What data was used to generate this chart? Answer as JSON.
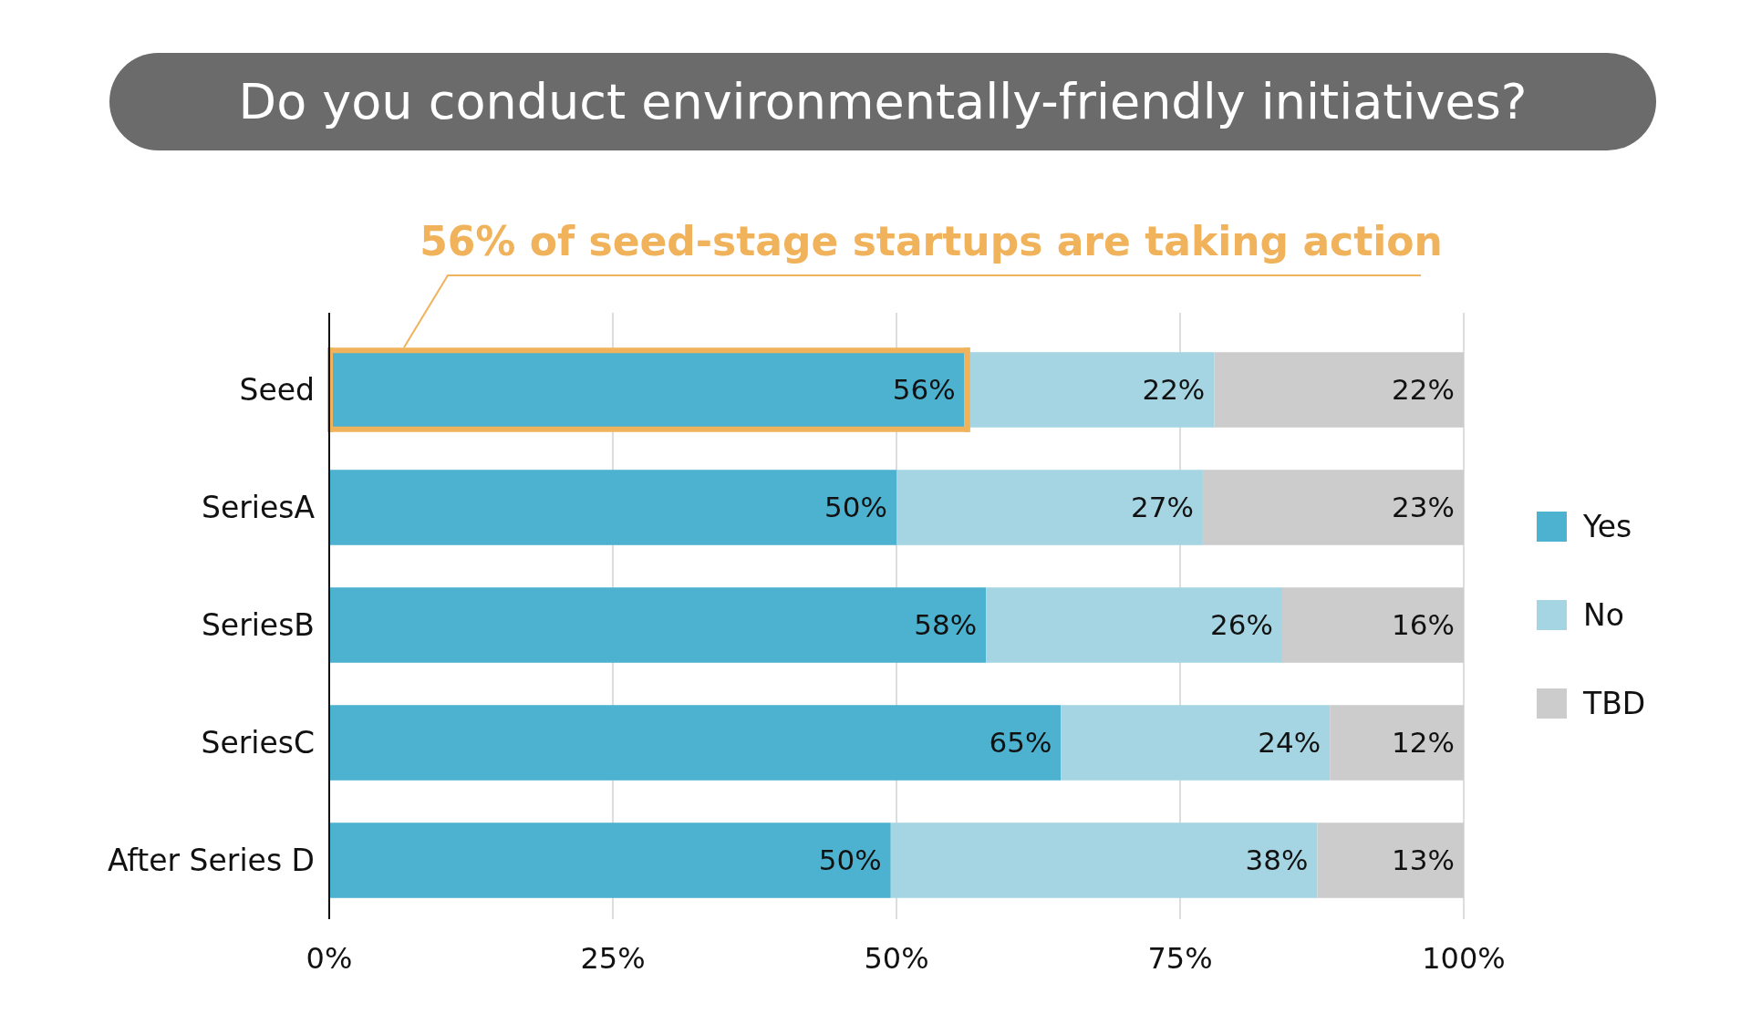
{
  "chart_data": {
    "type": "bar",
    "title": "Do you conduct environmentally-friendly initiatives?",
    "annotations": [
      "56% of seed-stage startups are taking action"
    ],
    "orientation": "horizontal",
    "stacked": true,
    "categories": [
      "Seed",
      "SeriesA",
      "SeriesB",
      "SeriesC",
      "After Series D"
    ],
    "series": [
      {
        "name": "Yes",
        "color": "#4db2d0",
        "values": [
          56,
          50,
          57.9,
          64.5,
          49.5
        ],
        "value_labels": [
          "56%",
          "50%",
          "58%",
          "65%",
          "50%"
        ]
      },
      {
        "name": "No",
        "color": "#a5d5e2",
        "values": [
          22,
          27,
          26.1,
          23.7,
          37.6
        ],
        "value_labels": [
          "22%",
          "27%",
          "26%",
          "24%",
          "38%"
        ]
      },
      {
        "name": "TBD",
        "color": "#cccccc",
        "values": [
          22,
          23,
          16,
          11.8,
          12.9
        ],
        "value_labels": [
          "22%",
          "23%",
          "16%",
          "12%",
          "13%"
        ]
      }
    ],
    "xlim": [
      0,
      100
    ],
    "xticks": [
      {
        "value": 0,
        "label": "0%"
      },
      {
        "value": 25,
        "label": "25%"
      },
      {
        "value": 50,
        "label": "50%"
      },
      {
        "value": 75,
        "label": "75%"
      },
      {
        "value": 100,
        "label": "100%"
      }
    ],
    "grid": "x",
    "legend": "right"
  }
}
